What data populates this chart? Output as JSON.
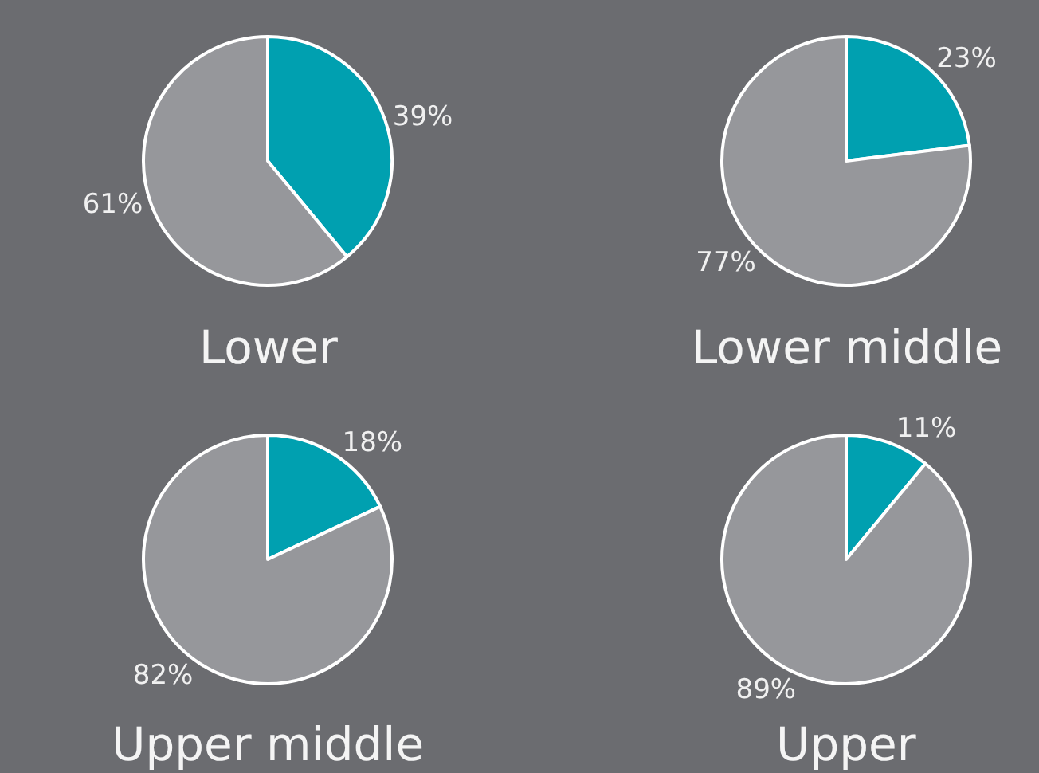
{
  "chart_data": [
    {
      "type": "pie",
      "title": "Lower",
      "categories": [
        null,
        null
      ],
      "values": [
        39,
        61
      ],
      "colors": [
        "#00a0b0",
        "#96979b"
      ],
      "value_labels": [
        "39%",
        "61%"
      ]
    },
    {
      "type": "pie",
      "title": "Lower middle",
      "categories": [
        null,
        null
      ],
      "values": [
        23,
        77
      ],
      "colors": [
        "#00a0b0",
        "#96979b"
      ],
      "value_labels": [
        "23%",
        "77%"
      ]
    },
    {
      "type": "pie",
      "title": "Upper middle",
      "categories": [
        null,
        null
      ],
      "values": [
        18,
        82
      ],
      "colors": [
        "#00a0b0",
        "#96979b"
      ],
      "value_labels": [
        "18%",
        "82%"
      ]
    },
    {
      "type": "pie",
      "title": "Upper",
      "categories": [
        null,
        null
      ],
      "values": [
        11,
        89
      ],
      "colors": [
        "#00a0b0",
        "#96979b"
      ],
      "value_labels": [
        "11%",
        "89%"
      ]
    }
  ]
}
